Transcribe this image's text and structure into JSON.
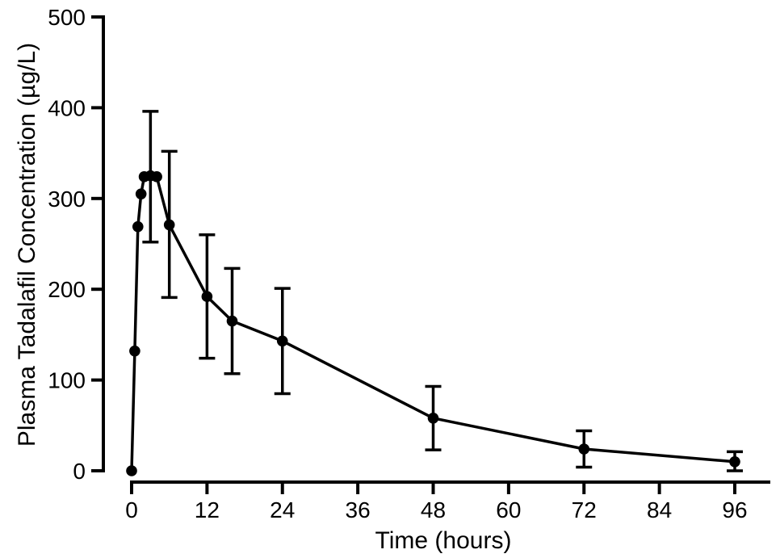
{
  "figure": {
    "background": "#ffffff",
    "ink_color": "#000000"
  },
  "chart_data": {
    "type": "line",
    "title": "",
    "xlabel": "Time (hours)",
    "ylabel": "Plasma Tadalafil Concentration (µg/L)",
    "xlim": [
      0,
      96
    ],
    "ylim": [
      0,
      500
    ],
    "x_ticks": [
      0,
      12,
      24,
      36,
      48,
      60,
      72,
      84,
      96
    ],
    "y_ticks": [
      0,
      100,
      200,
      300,
      400,
      500
    ],
    "grid": false,
    "legend": null,
    "marker": "filled-circle",
    "error_bars": "mean ± SD",
    "series": [
      {
        "name": "plasma-tadalafil-concentration",
        "color": "#000000",
        "points": [
          {
            "x": 0,
            "y": 0
          },
          {
            "x": 0.5,
            "y": 132
          },
          {
            "x": 1,
            "y": 269
          },
          {
            "x": 1.5,
            "y": 305
          },
          {
            "x": 2,
            "y": 324
          },
          {
            "x": 3,
            "y": 325,
            "err_low": 252,
            "err_high": 396
          },
          {
            "x": 4,
            "y": 324
          },
          {
            "x": 6,
            "y": 271,
            "err_low": 191,
            "err_high": 352
          },
          {
            "x": 12,
            "y": 192,
            "err_low": 124,
            "err_high": 260
          },
          {
            "x": 16,
            "y": 165,
            "err_low": 107,
            "err_high": 223
          },
          {
            "x": 24,
            "y": 143,
            "err_low": 85,
            "err_high": 201
          },
          {
            "x": 48,
            "y": 58,
            "err_low": 23,
            "err_high": 93
          },
          {
            "x": 72,
            "y": 24,
            "err_low": 4,
            "err_high": 44
          },
          {
            "x": 96,
            "y": 10,
            "err_low": 0,
            "err_high": 21
          }
        ]
      }
    ]
  }
}
